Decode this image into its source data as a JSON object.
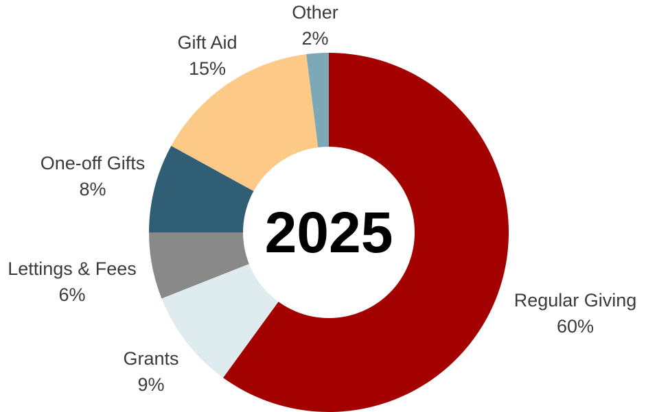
{
  "chart_data": {
    "type": "pie",
    "variant": "donut",
    "center_text": "2025",
    "start": "top, clockwise",
    "slices": [
      {
        "name": "Regular Giving",
        "value": 60,
        "label": "60%",
        "color": "#a30000",
        "label_side": "right"
      },
      {
        "name": "Grants",
        "value": 9,
        "label": "9%",
        "color": "#deecef",
        "label_side": "left"
      },
      {
        "name": "Lettings & Fees",
        "value": 6,
        "label": "6%",
        "color": "#898989",
        "label_side": "left"
      },
      {
        "name": "One-off Gifts",
        "value": 8,
        "label": "8%",
        "color": "#305f75",
        "label_side": "left"
      },
      {
        "name": "Gift Aid",
        "value": 15,
        "label": "15%",
        "color": "#fdc986",
        "label_side": "left"
      },
      {
        "name": "Other",
        "value": 2,
        "label": "2%",
        "color": "#7ba9b8",
        "label_side": "top"
      }
    ]
  }
}
